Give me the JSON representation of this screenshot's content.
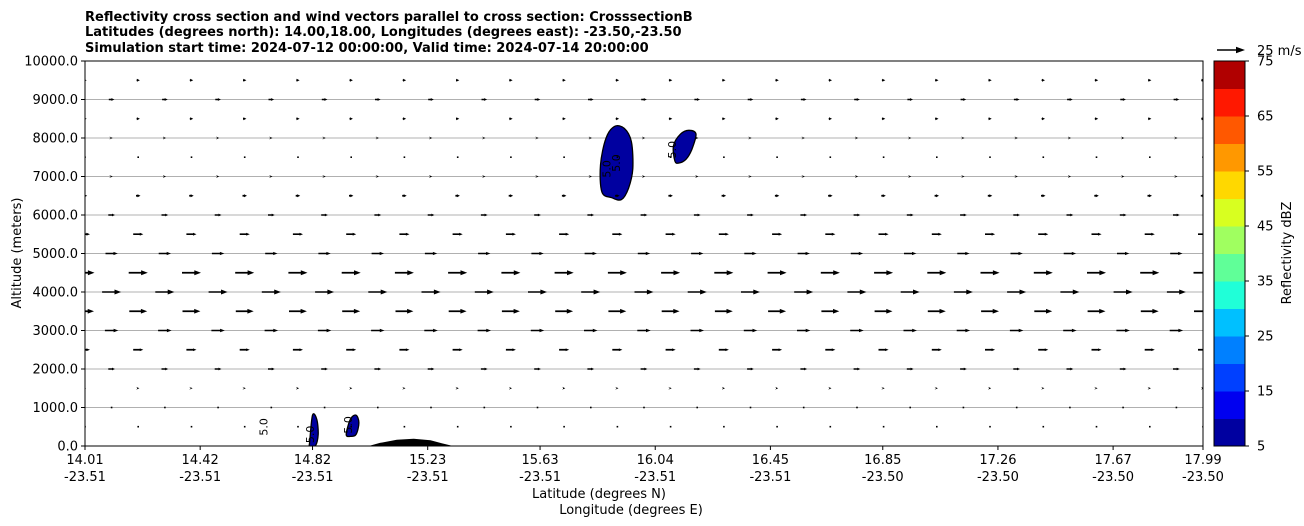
{
  "chart_data": {
    "type": "contour",
    "title_lines": [
      "Reflectivity cross section and wind vectors parallel to cross section: CrosssectionB",
      "Latitudes (degrees north): 14.00,18.00, Longitudes (degrees east): -23.50,-23.50",
      "Simulation start time: 2024-07-12 00:00:00, Valid time: 2024-07-14 20:00:00"
    ],
    "xlabel_lat": "Latitude (degrees N)",
    "xlabel_lon": "Longitude (degrees E)",
    "ylabel": "Altitude (meters)",
    "xlim": [
      14.01,
      17.99
    ],
    "ylim": [
      0,
      10000
    ],
    "x_ticks": [
      {
        "lat": "14.01",
        "lon": "-23.51",
        "v": 14.01
      },
      {
        "lat": "14.42",
        "lon": "-23.51",
        "v": 14.42
      },
      {
        "lat": "14.82",
        "lon": "-23.51",
        "v": 14.82
      },
      {
        "lat": "15.23",
        "lon": "-23.51",
        "v": 15.23
      },
      {
        "lat": "15.63",
        "lon": "-23.51",
        "v": 15.63
      },
      {
        "lat": "16.04",
        "lon": "-23.51",
        "v": 16.04
      },
      {
        "lat": "16.45",
        "lon": "-23.51",
        "v": 16.45
      },
      {
        "lat": "16.85",
        "lon": "-23.50",
        "v": 16.85
      },
      {
        "lat": "17.26",
        "lon": "-23.50",
        "v": 17.26
      },
      {
        "lat": "17.67",
        "lon": "-23.50",
        "v": 17.67
      },
      {
        "lat": "17.99",
        "lon": "-23.50",
        "v": 17.99
      }
    ],
    "y_ticks": [
      {
        "label": "0.0",
        "v": 0
      },
      {
        "label": "1000.0",
        "v": 1000
      },
      {
        "label": "2000.0",
        "v": 2000
      },
      {
        "label": "3000.0",
        "v": 3000
      },
      {
        "label": "4000.0",
        "v": 4000
      },
      {
        "label": "5000.0",
        "v": 5000
      },
      {
        "label": "6000.0",
        "v": 6000
      },
      {
        "label": "7000.0",
        "v": 7000
      },
      {
        "label": "8000.0",
        "v": 8000
      },
      {
        "label": "9000.0",
        "v": 9000
      },
      {
        "label": "10000.0",
        "v": 10000
      }
    ],
    "grid": "horizontal",
    "colorbar": {
      "label": "Reflectivity dBZ",
      "levels": [
        5,
        10,
        15,
        20,
        25,
        30,
        35,
        40,
        45,
        50,
        55,
        60,
        65,
        70,
        75
      ],
      "tick_labels": [
        "5",
        "15",
        "25",
        "35",
        "45",
        "55",
        "65",
        "75"
      ],
      "colors": [
        "#0000a0",
        "#0000f0",
        "#0040ff",
        "#0080ff",
        "#00c0ff",
        "#20ffd8",
        "#60ff98",
        "#a0ff60",
        "#d8ff20",
        "#ffd800",
        "#ff9800",
        "#ff5800",
        "#ff1800",
        "#b00000"
      ]
    },
    "wind_key": {
      "label": "25 m/s",
      "speed": 25
    },
    "wind_field": {
      "altitudes": [
        500,
        1000,
        1500,
        2000,
        2500,
        3000,
        3500,
        4000,
        4500,
        5000,
        5500,
        6000,
        6500,
        7000,
        7500,
        8000,
        8500,
        9000,
        9500
      ],
      "speeds_ms": [
        0.5,
        1,
        2,
        6,
        9,
        12,
        16,
        17,
        17,
        11,
        9,
        6,
        4,
        2,
        1,
        2,
        3,
        5,
        3
      ]
    },
    "reflectivity_areas": [
      {
        "level": 5,
        "contour_label": "5.0",
        "polygon": [
          [
            14.81,
            120
          ],
          [
            14.82,
            800
          ],
          [
            14.835,
            700
          ],
          [
            14.84,
            300
          ],
          [
            14.83,
            0
          ],
          [
            14.81,
            0
          ]
        ]
      },
      {
        "level": 5,
        "contour_label": "5.0",
        "polygon": [
          [
            14.94,
            300
          ],
          [
            14.955,
            700
          ],
          [
            14.975,
            800
          ],
          [
            14.985,
            600
          ],
          [
            14.975,
            300
          ],
          [
            14.955,
            250
          ]
        ]
      },
      {
        "level": 5,
        "contour_label": "5.0",
        "polygon": [
          [
            15.85,
            6600
          ],
          [
            15.845,
            7300
          ],
          [
            15.865,
            8000
          ],
          [
            15.895,
            8300
          ],
          [
            15.93,
            8250
          ],
          [
            15.955,
            7900
          ],
          [
            15.96,
            7200
          ],
          [
            15.945,
            6700
          ],
          [
            15.92,
            6400
          ],
          [
            15.885,
            6450
          ]
        ]
      },
      {
        "level": 5,
        "contour_label": "5.0",
        "polygon": [
          [
            16.11,
            7400
          ],
          [
            16.105,
            7800
          ],
          [
            16.13,
            8100
          ],
          [
            16.16,
            8200
          ],
          [
            16.185,
            8100
          ],
          [
            16.17,
            7700
          ],
          [
            16.15,
            7450
          ],
          [
            16.125,
            7350
          ]
        ]
      }
    ],
    "contour_labels": [
      {
        "text": "5.0",
        "x": 14.66,
        "y": 500
      },
      {
        "text": "5.0",
        "x": 14.825,
        "y": 300
      },
      {
        "text": "5.0",
        "x": 14.96,
        "y": 550
      },
      {
        "text": "5.0",
        "x": 15.88,
        "y": 7200
      },
      {
        "text": "5.0",
        "x": 15.915,
        "y": 7350
      },
      {
        "text": "5.0",
        "x": 16.115,
        "y": 7700
      }
    ],
    "terrain": [
      [
        15.02,
        0
      ],
      [
        15.06,
        80
      ],
      [
        15.12,
        160
      ],
      [
        15.18,
        190
      ],
      [
        15.24,
        150
      ],
      [
        15.28,
        70
      ],
      [
        15.32,
        0
      ]
    ]
  }
}
